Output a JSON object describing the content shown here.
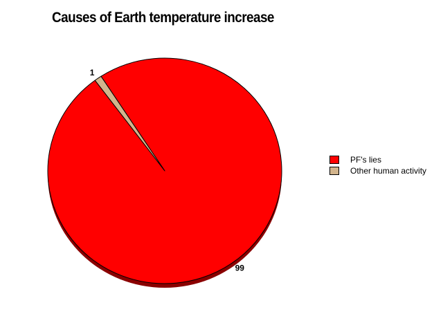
{
  "chart_data": {
    "type": "pie",
    "title": "Causes of Earth temperature increase",
    "slices": [
      {
        "label": "PF's lies",
        "value": 99,
        "value_label": "99",
        "color": "#FF0000"
      },
      {
        "label": "Other human activity",
        "value": 1,
        "value_label": "1",
        "color": "#D2B48C"
      }
    ],
    "legend_position": "right"
  }
}
